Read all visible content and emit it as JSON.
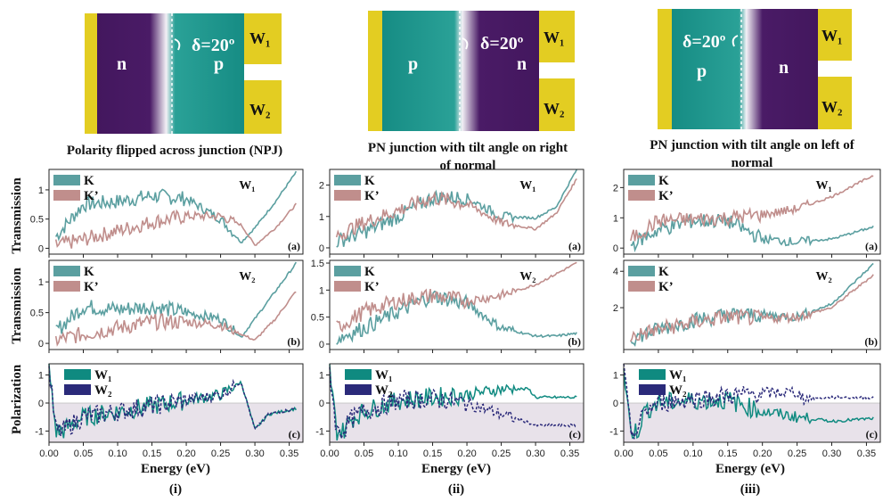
{
  "colors": {
    "K": "#5b9fa0",
    "Kp": "#c08e8c",
    "W1": "#0f8a80",
    "W2": "#2b2a7a",
    "n": "#43175e",
    "p": "#1a9088",
    "gold": "#e3cd22",
    "shade": "#e8e2ea"
  },
  "diagrams": [
    {
      "left_label": "n",
      "right_label": "p",
      "angle_label": "δ=20º",
      "contact1": "W₁",
      "contact2": "W₂",
      "caption_lines": [
        "Polarity flipped across junction (NPJ)"
      ]
    },
    {
      "left_label": "p",
      "right_label": "n",
      "angle_label": "δ=20º",
      "contact1": "W₁",
      "contact2": "W₂",
      "caption_lines": [
        "PN junction with tilt angle on right",
        "of normal"
      ]
    },
    {
      "left_label": "p",
      "right_label": "n",
      "angle_label": "δ=20º",
      "contact1": "W₁",
      "contact2": "W₂",
      "caption_lines": [
        "PN junction with tilt angle on left of",
        "normal"
      ]
    }
  ],
  "axis_labels": {
    "transmission": "Transmission",
    "polarization": "Polarization",
    "energy": "Energy (eV)"
  },
  "column_labels": [
    "(i)",
    "(ii)",
    "(iii)"
  ],
  "x_ticks": [
    "0.00",
    "0.05",
    "0.10",
    "0.15",
    "0.20",
    "0.25",
    "0.30",
    "0.35"
  ],
  "chart_data": [
    {
      "type": "line",
      "column": "(i)",
      "panel": "(a)",
      "title": "W₁",
      "xlabel": "Energy (eV)",
      "ylabel": "Transmission",
      "xlim": [
        0,
        0.37
      ],
      "ylim": [
        -0.1,
        1.35
      ],
      "yticks": [
        "0",
        "0.5",
        "1"
      ],
      "series": [
        {
          "name": "K",
          "x": [
            0.01,
            0.05,
            0.1,
            0.15,
            0.2,
            0.25,
            0.28,
            0.3,
            0.33,
            0.36
          ],
          "values": [
            0.2,
            0.75,
            0.8,
            0.9,
            0.85,
            0.5,
            0.1,
            0.35,
            0.8,
            1.3
          ]
        },
        {
          "name": "K’",
          "x": [
            0.01,
            0.05,
            0.1,
            0.15,
            0.2,
            0.25,
            0.28,
            0.3,
            0.33,
            0.36
          ],
          "values": [
            0.05,
            0.15,
            0.3,
            0.45,
            0.55,
            0.55,
            0.4,
            0.05,
            0.35,
            0.75
          ]
        }
      ]
    },
    {
      "type": "line",
      "column": "(i)",
      "panel": "(b)",
      "title": "W₂",
      "xlabel": "Energy (eV)",
      "ylabel": "Transmission",
      "xlim": [
        0,
        0.37
      ],
      "ylim": [
        -0.1,
        1.35
      ],
      "yticks": [
        "0",
        "0.5",
        "1"
      ],
      "series": [
        {
          "name": "K",
          "x": [
            0.01,
            0.05,
            0.1,
            0.15,
            0.2,
            0.25,
            0.28,
            0.3,
            0.33,
            0.36
          ],
          "values": [
            0.2,
            0.6,
            0.55,
            0.6,
            0.5,
            0.4,
            0.1,
            0.4,
            0.85,
            1.3
          ]
        },
        {
          "name": "K’",
          "x": [
            0.01,
            0.05,
            0.1,
            0.15,
            0.2,
            0.25,
            0.28,
            0.3,
            0.33,
            0.36
          ],
          "values": [
            0.05,
            0.15,
            0.25,
            0.35,
            0.35,
            0.3,
            0.15,
            0.05,
            0.4,
            0.85
          ]
        }
      ]
    },
    {
      "type": "line",
      "column": "(i)",
      "panel": "(c)",
      "xlabel": "Energy (eV)",
      "ylabel": "Polarization",
      "xlim": [
        0,
        0.37
      ],
      "ylim": [
        -1.4,
        1.4
      ],
      "yticks": [
        "1",
        "0",
        "-1"
      ],
      "series": [
        {
          "name": "W₁",
          "x": [
            0.0,
            0.01,
            0.02,
            0.03,
            0.05,
            0.1,
            0.15,
            0.2,
            0.25,
            0.28,
            0.3,
            0.32,
            0.36
          ],
          "values": [
            1.2,
            -1.0,
            -1.0,
            -0.8,
            -0.5,
            -0.3,
            -0.1,
            0.1,
            0.3,
            0.75,
            -0.95,
            -0.4,
            -0.2
          ]
        },
        {
          "name": "W₂",
          "x": [
            0.0,
            0.01,
            0.02,
            0.03,
            0.05,
            0.1,
            0.15,
            0.2,
            0.25,
            0.28,
            0.3,
            0.32,
            0.36
          ],
          "values": [
            1.2,
            -1.0,
            -1.0,
            -0.8,
            -0.5,
            -0.3,
            -0.1,
            0.1,
            0.3,
            0.75,
            -0.95,
            -0.4,
            -0.2
          ]
        }
      ]
    },
    {
      "type": "line",
      "column": "(ii)",
      "panel": "(a)",
      "title": "W₁",
      "xlabel": "Energy (eV)",
      "ylabel": "Transmission",
      "xlim": [
        0,
        0.37
      ],
      "ylim": [
        -0.2,
        2.5
      ],
      "yticks": [
        "0",
        "1",
        "2"
      ],
      "series": [
        {
          "name": "K",
          "x": [
            0.01,
            0.05,
            0.1,
            0.15,
            0.2,
            0.25,
            0.3,
            0.33,
            0.36
          ],
          "values": [
            0.2,
            0.5,
            1.0,
            1.6,
            1.6,
            1.0,
            0.95,
            1.3,
            2.5
          ]
        },
        {
          "name": "K’",
          "x": [
            0.01,
            0.05,
            0.1,
            0.15,
            0.2,
            0.25,
            0.3,
            0.33,
            0.36
          ],
          "values": [
            0.4,
            0.8,
            1.2,
            1.6,
            1.4,
            0.8,
            0.6,
            1.1,
            2.2
          ]
        }
      ]
    },
    {
      "type": "line",
      "column": "(ii)",
      "panel": "(b)",
      "title": "W₂",
      "xlabel": "Energy (eV)",
      "ylabel": "Transmission",
      "xlim": [
        0,
        0.37
      ],
      "ylim": [
        -0.1,
        1.55
      ],
      "yticks": [
        "0",
        "0.5",
        "1",
        "1.5"
      ],
      "series": [
        {
          "name": "K",
          "x": [
            0.01,
            0.05,
            0.1,
            0.15,
            0.2,
            0.25,
            0.3,
            0.33,
            0.36
          ],
          "values": [
            0.1,
            0.3,
            0.6,
            0.9,
            0.75,
            0.3,
            0.15,
            0.15,
            0.2
          ]
        },
        {
          "name": "K’",
          "x": [
            0.01,
            0.05,
            0.1,
            0.15,
            0.2,
            0.25,
            0.3,
            0.33,
            0.36
          ],
          "values": [
            0.3,
            0.6,
            0.8,
            0.9,
            0.8,
            0.9,
            1.1,
            1.3,
            1.5
          ]
        }
      ]
    },
    {
      "type": "line",
      "column": "(ii)",
      "panel": "(c)",
      "xlabel": "Energy (eV)",
      "ylabel": "Polarization",
      "xlim": [
        0,
        0.37
      ],
      "ylim": [
        -1.4,
        1.4
      ],
      "yticks": [
        "1",
        "0",
        "-1"
      ],
      "series": [
        {
          "name": "W₁",
          "x": [
            0.0,
            0.01,
            0.02,
            0.03,
            0.05,
            0.1,
            0.15,
            0.2,
            0.25,
            0.29,
            0.3,
            0.36
          ],
          "values": [
            1.2,
            -1.0,
            -1.0,
            -0.6,
            -0.3,
            0.1,
            0.2,
            0.3,
            0.5,
            0.5,
            0.2,
            0.2
          ]
        },
        {
          "name": "W₂",
          "x": [
            0.0,
            0.01,
            0.02,
            0.03,
            0.05,
            0.1,
            0.15,
            0.2,
            0.25,
            0.29,
            0.3,
            0.36
          ],
          "values": [
            1.2,
            -1.0,
            -1.0,
            -0.6,
            -0.3,
            0.1,
            0.15,
            0.0,
            -0.4,
            -0.7,
            -0.8,
            -0.8
          ]
        }
      ]
    },
    {
      "type": "line",
      "column": "(iii)",
      "panel": "(a)",
      "title": "W₁",
      "xlabel": "Energy (eV)",
      "ylabel": "Transmission",
      "xlim": [
        0,
        0.37
      ],
      "ylim": [
        -0.2,
        2.6
      ],
      "yticks": [
        "0",
        "1",
        "2"
      ],
      "series": [
        {
          "name": "K",
          "x": [
            0.01,
            0.05,
            0.1,
            0.15,
            0.2,
            0.25,
            0.3,
            0.36
          ],
          "values": [
            0.1,
            0.6,
            0.9,
            0.9,
            0.3,
            0.2,
            0.3,
            0.7
          ]
        },
        {
          "name": "K’",
          "x": [
            0.01,
            0.05,
            0.1,
            0.15,
            0.2,
            0.25,
            0.3,
            0.36
          ],
          "values": [
            0.3,
            0.9,
            0.95,
            1.0,
            1.1,
            1.3,
            1.7,
            2.4
          ]
        }
      ]
    },
    {
      "type": "line",
      "column": "(iii)",
      "panel": "(b)",
      "title": "W₂",
      "xlabel": "Energy (eV)",
      "ylabel": "Transmission",
      "xlim": [
        0,
        0.37
      ],
      "ylim": [
        -0.3,
        4.6
      ],
      "yticks": [
        "2",
        "4"
      ],
      "series": [
        {
          "name": "K",
          "x": [
            0.01,
            0.05,
            0.1,
            0.15,
            0.2,
            0.25,
            0.3,
            0.36
          ],
          "values": [
            0.3,
            0.8,
            1.3,
            1.6,
            1.6,
            1.5,
            2.2,
            4.4
          ]
        },
        {
          "name": "K’",
          "x": [
            0.01,
            0.05,
            0.1,
            0.15,
            0.2,
            0.25,
            0.3,
            0.36
          ],
          "values": [
            0.4,
            0.8,
            1.2,
            1.5,
            1.4,
            1.5,
            2.0,
            3.8
          ]
        }
      ]
    },
    {
      "type": "line",
      "column": "(iii)",
      "panel": "(c)",
      "xlabel": "Energy (eV)",
      "ylabel": "Polarization",
      "xlim": [
        0,
        0.37
      ],
      "ylim": [
        -1.4,
        1.4
      ],
      "yticks": [
        "1",
        "0",
        "-1"
      ],
      "series": [
        {
          "name": "W₁",
          "x": [
            0.0,
            0.01,
            0.02,
            0.03,
            0.05,
            0.1,
            0.15,
            0.2,
            0.25,
            0.3,
            0.36
          ],
          "values": [
            1.2,
            -1.0,
            -1.0,
            -0.3,
            0.0,
            0.1,
            0.1,
            -0.3,
            -0.5,
            -0.65,
            -0.55
          ]
        },
        {
          "name": "W₂",
          "x": [
            0.0,
            0.01,
            0.02,
            0.03,
            0.05,
            0.1,
            0.15,
            0.2,
            0.25,
            0.26,
            0.3,
            0.36
          ],
          "values": [
            1.2,
            -1.0,
            -1.0,
            -0.3,
            0.0,
            0.15,
            0.25,
            0.35,
            0.4,
            0.15,
            0.2,
            0.2
          ]
        }
      ]
    }
  ]
}
